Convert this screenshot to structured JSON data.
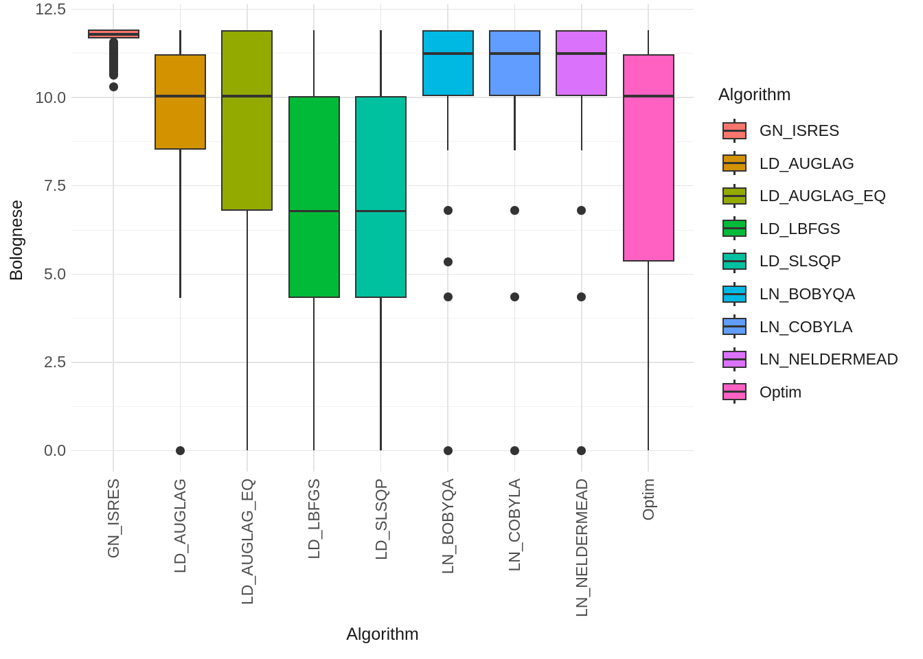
{
  "chart_data": {
    "type": "boxplot",
    "title": "",
    "xlabel": "Algorithm",
    "ylabel": "Bolognese",
    "legend_title": "Algorithm",
    "legend_position": "right",
    "grid": "major+minor",
    "ylim": [
      -0.6,
      12.8
    ],
    "y_major_ticks": [
      0,
      2.5,
      5,
      7.5,
      10,
      12.5
    ],
    "y_tick_labels": [
      "0.0",
      "2.5",
      "5.0",
      "7.5",
      "10.0",
      "12.5"
    ],
    "y_minor_ticks": [
      1.25,
      3.75,
      6.25,
      8.75,
      11.25
    ],
    "categories": [
      "GN_ISRES",
      "LD_AUGLAG",
      "LD_AUGLAG_EQ",
      "LD_LBFGS",
      "LD_SLSQP",
      "LN_BOBYQA",
      "LN_COBYLA",
      "LN_NELDERMEAD",
      "Optim"
    ],
    "series": [
      {
        "name": "GN_ISRES",
        "color": "#F8766D",
        "whisker_low": 11.48,
        "q1": 11.67,
        "median": 11.79,
        "q3": 11.92,
        "whisker_high": 11.92,
        "outliers": [
          11.56,
          11.51,
          11.47,
          11.42,
          11.38,
          11.33,
          11.28,
          11.24,
          11.19,
          11.15,
          11.1,
          11.05,
          11.01,
          10.96,
          10.92,
          10.87,
          10.82,
          10.78,
          10.73,
          10.68,
          10.63,
          10.3
        ]
      },
      {
        "name": "LD_AUGLAG",
        "color": "#D39200",
        "whisker_low": 4.32,
        "q1": 8.52,
        "median": 10.04,
        "q3": 11.22,
        "whisker_high": 11.9,
        "outliers": [
          0
        ]
      },
      {
        "name": "LD_AUGLAG_EQ",
        "color": "#93AA00",
        "whisker_low": 0,
        "q1": 6.8,
        "median": 10.04,
        "q3": 11.9,
        "whisker_high": 11.9,
        "outliers": []
      },
      {
        "name": "LD_LBFGS",
        "color": "#00BA38",
        "whisker_low": 0,
        "q1": 4.33,
        "median": 6.78,
        "q3": 10.04,
        "whisker_high": 11.9,
        "outliers": []
      },
      {
        "name": "LD_SLSQP",
        "color": "#00C19F",
        "whisker_low": 0,
        "q1": 4.33,
        "median": 6.78,
        "q3": 10.04,
        "whisker_high": 11.9,
        "outliers": []
      },
      {
        "name": "LN_BOBYQA",
        "color": "#00B9E3",
        "whisker_low": 8.5,
        "q1": 10.04,
        "median": 11.25,
        "q3": 11.9,
        "whisker_high": 11.9,
        "outliers": [
          6.8,
          5.35,
          4.35,
          0
        ]
      },
      {
        "name": "LN_COBYLA",
        "color": "#619CFF",
        "whisker_low": 8.5,
        "q1": 10.04,
        "median": 11.25,
        "q3": 11.9,
        "whisker_high": 11.9,
        "outliers": [
          6.8,
          4.35,
          0
        ]
      },
      {
        "name": "LN_NELDERMEAD",
        "color": "#DB72FB",
        "whisker_low": 8.5,
        "q1": 10.04,
        "median": 11.25,
        "q3": 11.9,
        "whisker_high": 11.9,
        "outliers": [
          6.8,
          4.35,
          0
        ]
      },
      {
        "name": "Optim",
        "color": "#FF61C3",
        "whisker_low": 0,
        "q1": 5.35,
        "median": 10.04,
        "q3": 11.22,
        "whisker_high": 11.9,
        "outliers": []
      }
    ]
  }
}
